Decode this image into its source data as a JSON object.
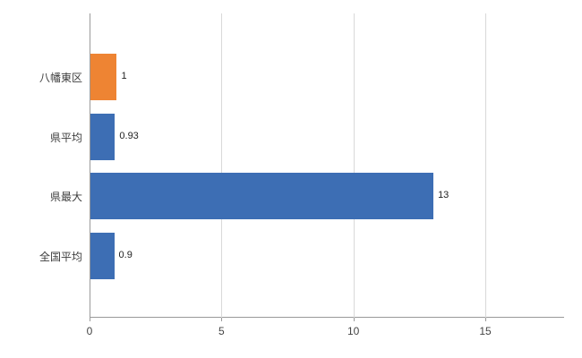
{
  "chart_data": {
    "type": "bar",
    "orientation": "horizontal",
    "title": "",
    "xlabel": "",
    "ylabel": "",
    "categories": [
      "八幡東区",
      "県平均",
      "県最大",
      "全国平均"
    ],
    "values": [
      1,
      0.93,
      13,
      0.9
    ],
    "value_labels": [
      "1",
      "0.93",
      "13",
      "0.9"
    ],
    "bar_colors": [
      "#ee8433",
      "#3d6eb4",
      "#3d6eb4",
      "#3d6eb4"
    ],
    "x_ticks": [
      0,
      5,
      10,
      15
    ],
    "x_tick_labels": [
      "0",
      "5",
      "10",
      "15"
    ],
    "xlim": [
      0,
      18
    ],
    "grid": "vertical",
    "legend": "none"
  },
  "colors": {
    "background": "#ffffff",
    "grid": "#d9d9d9",
    "axis": "#9a9a9a",
    "tick_text": "#444444",
    "category_text": "#3d3d3d",
    "value_text": "#222222",
    "orange": "#ee8433",
    "blue": "#3d6eb4"
  }
}
